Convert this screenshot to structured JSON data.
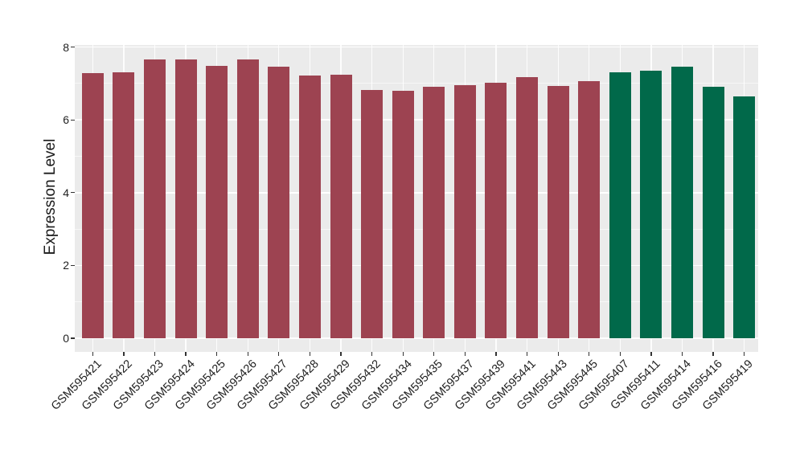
{
  "figure": {
    "background_color": "#FFFFFF",
    "panel_background_color": "#EBEBEB",
    "gridline_color": "#FFFFFF",
    "axis_text_color": "#1F1F1F",
    "tick_mark_color": "#333333"
  },
  "chart_data": {
    "type": "bar",
    "title": "",
    "xlabel": "",
    "ylabel": "Expression Level",
    "ylim": [
      0,
      8.06
    ],
    "yticks": [
      0,
      2,
      4,
      6,
      8
    ],
    "minor_gridlines": [
      1,
      3,
      5,
      7
    ],
    "grid": true,
    "legend_position": "none",
    "x_tick_rotation_degrees": 45,
    "categories": [
      "GSM595421",
      "GSM595422",
      "GSM595423",
      "GSM595424",
      "GSM595425",
      "GSM595426",
      "GSM595427",
      "GSM595428",
      "GSM595429",
      "GSM595432",
      "GSM595434",
      "GSM595435",
      "GSM595437",
      "GSM595439",
      "GSM595441",
      "GSM595443",
      "GSM595445",
      "GSM595407",
      "GSM595411",
      "GSM595414",
      "GSM595416",
      "GSM595419"
    ],
    "values": [
      7.29,
      7.31,
      7.66,
      7.65,
      7.48,
      7.65,
      7.47,
      7.21,
      7.24,
      6.83,
      6.81,
      6.92,
      6.96,
      7.03,
      7.18,
      6.94,
      7.06,
      7.31,
      7.36,
      7.47,
      6.92,
      6.64
    ],
    "groups": [
      "a",
      "a",
      "a",
      "a",
      "a",
      "a",
      "a",
      "a",
      "a",
      "a",
      "a",
      "a",
      "a",
      "a",
      "a",
      "a",
      "a",
      "b",
      "b",
      "b",
      "b",
      "b"
    ],
    "group_colors": {
      "a": "#9D4351",
      "b": "#01694A"
    }
  }
}
